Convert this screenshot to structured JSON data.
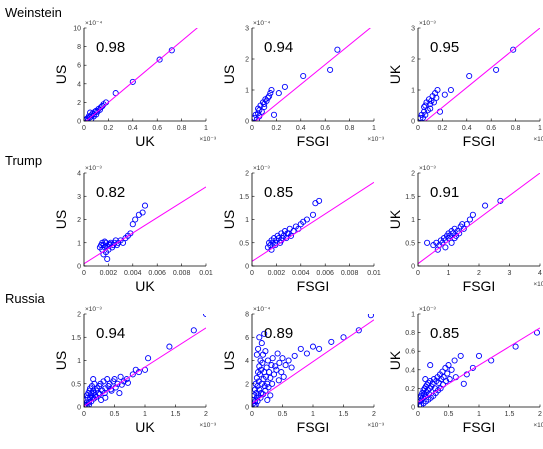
{
  "colors": {
    "marker": "#0000ff",
    "fit_line": "#ff00ff",
    "axes": "#000000"
  },
  "rows": [
    {
      "label": "Weinstein"
    },
    {
      "label": "Trump"
    },
    {
      "label": "Russia"
    }
  ],
  "chart_data": [
    {
      "type": "scatter",
      "row": 0,
      "col": 0,
      "corr": "0.98",
      "xlabel": "UK",
      "ylabel": "US",
      "xlim": [
        0,
        1
      ],
      "ylim": [
        0,
        10
      ],
      "xticks": [
        "0",
        "0.2",
        "0.4",
        "0.6",
        "0.8",
        "1"
      ],
      "yticks": [
        "0",
        "2",
        "4",
        "6",
        "8",
        "10"
      ],
      "xmult": "×10⁻³",
      "ymult": "×10⁻⁴",
      "fit": [
        [
          0,
          -0.2
        ],
        [
          1,
          10.8
        ]
      ],
      "x": [
        0.01,
        0.02,
        0.03,
        0.04,
        0.05,
        0.06,
        0.07,
        0.08,
        0.09,
        0.1,
        0.11,
        0.12,
        0.13,
        0.14,
        0.15,
        0.16,
        0.05,
        0.08,
        0.18,
        0.26,
        0.4,
        0.62,
        0.72,
        0.03,
        0.06,
        0.1
      ],
      "y": [
        0.1,
        0.2,
        0.3,
        0.5,
        0.4,
        0.6,
        0.8,
        0.7,
        1.0,
        1.1,
        1.0,
        1.3,
        1.2,
        1.5,
        1.6,
        1.8,
        0.9,
        0.5,
        2.0,
        3.0,
        4.2,
        6.6,
        7.6,
        0.0,
        0.2,
        0.7
      ]
    },
    {
      "type": "scatter",
      "row": 0,
      "col": 1,
      "corr": "0.94",
      "xlabel": "FSGI",
      "ylabel": "US",
      "xlim": [
        0,
        1
      ],
      "ylim": [
        0,
        3
      ],
      "xticks": [
        "0",
        "0.2",
        "0.4",
        "0.6",
        "0.8",
        "1"
      ],
      "yticks": [
        "0",
        "1",
        "2",
        "3"
      ],
      "xmult": "×10⁻³",
      "ymult": "×10⁻⁴",
      "fit": [
        [
          0,
          -0.1
        ],
        [
          1,
          3.1
        ]
      ],
      "x": [
        0.02,
        0.03,
        0.05,
        0.05,
        0.06,
        0.07,
        0.08,
        0.09,
        0.1,
        0.11,
        0.12,
        0.13,
        0.14,
        0.15,
        0.18,
        0.22,
        0.27,
        0.42,
        0.64,
        0.7,
        0.06,
        0.1,
        0.04,
        0.16
      ],
      "y": [
        0.1,
        0.2,
        0.25,
        0.4,
        0.35,
        0.5,
        0.3,
        0.6,
        0.55,
        0.7,
        0.65,
        0.75,
        0.8,
        0.9,
        0.2,
        0.9,
        1.1,
        1.45,
        1.65,
        2.3,
        0.15,
        0.45,
        0.05,
        1.0
      ]
    },
    {
      "type": "scatter",
      "row": 0,
      "col": 2,
      "corr": "0.95",
      "xlabel": "FSGI",
      "ylabel": "UK",
      "xlim": [
        0,
        1
      ],
      "ylim": [
        0,
        3
      ],
      "xticks": [
        "0",
        "0.2",
        "0.4",
        "0.6",
        "0.8",
        "1"
      ],
      "yticks": [
        "0",
        "1",
        "2",
        "3"
      ],
      "xmult": "×10⁻³",
      "ymult": "×10⁻³",
      "fit": [
        [
          0,
          -0.2
        ],
        [
          1,
          3.0
        ]
      ],
      "x": [
        0.02,
        0.03,
        0.05,
        0.05,
        0.06,
        0.07,
        0.08,
        0.09,
        0.1,
        0.11,
        0.12,
        0.13,
        0.14,
        0.15,
        0.18,
        0.22,
        0.27,
        0.42,
        0.64,
        0.78,
        0.06,
        0.1,
        0.04,
        0.16
      ],
      "y": [
        0.1,
        0.2,
        0.3,
        0.45,
        0.5,
        0.6,
        0.35,
        0.7,
        0.55,
        0.65,
        0.8,
        0.6,
        0.9,
        0.75,
        0.3,
        0.85,
        1.0,
        1.45,
        1.65,
        2.3,
        0.2,
        0.4,
        0.1,
        1.0
      ]
    },
    {
      "type": "scatter",
      "row": 1,
      "col": 0,
      "corr": "0.82",
      "xlabel": "UK",
      "ylabel": "US",
      "xlim": [
        0,
        0.01
      ],
      "ylim": [
        0,
        4
      ],
      "xticks": [
        "0",
        "0.002",
        "0.004",
        "0.006",
        "0.008",
        "0.01"
      ],
      "yticks": [
        "0",
        "1",
        "2",
        "3",
        "4"
      ],
      "xmult": "",
      "ymult": "×10⁻³",
      "fit": [
        [
          0,
          0.1
        ],
        [
          0.01,
          3.4
        ]
      ],
      "x": [
        0.0013,
        0.0014,
        0.0015,
        0.0015,
        0.0016,
        0.0017,
        0.0018,
        0.0018,
        0.0019,
        0.002,
        0.0021,
        0.0022,
        0.0023,
        0.0024,
        0.0025,
        0.0026,
        0.0027,
        0.0028,
        0.003,
        0.0032,
        0.0034,
        0.0036,
        0.0038,
        0.004,
        0.0042,
        0.0045,
        0.0048,
        0.005,
        0.0016,
        0.0019,
        0.0017,
        0.0021
      ],
      "y": [
        0.8,
        0.9,
        0.7,
        1.0,
        0.9,
        0.8,
        1.0,
        0.6,
        0.3,
        0.7,
        0.9,
        1.0,
        0.8,
        0.9,
        1.0,
        1.1,
        0.9,
        1.0,
        1.1,
        1.0,
        1.2,
        1.3,
        1.4,
        1.8,
        2.0,
        2.2,
        2.3,
        2.6,
        0.5,
        0.85,
        1.05,
        0.95
      ]
    },
    {
      "type": "scatter",
      "row": 1,
      "col": 1,
      "corr": "0.85",
      "xlabel": "FSGI",
      "ylabel": "US",
      "xlim": [
        0,
        0.01
      ],
      "ylim": [
        0,
        2
      ],
      "xticks": [
        "0",
        "0.002",
        "0.004",
        "0.006",
        "0.008",
        "0.01"
      ],
      "yticks": [
        "0",
        "0.5",
        "1",
        "1.5",
        "2"
      ],
      "xmult": "",
      "ymult": "×10⁻³",
      "fit": [
        [
          0,
          0.1
        ],
        [
          0.01,
          1.8
        ]
      ],
      "x": [
        0.0013,
        0.0014,
        0.0015,
        0.0016,
        0.0017,
        0.0018,
        0.0019,
        0.002,
        0.0021,
        0.0022,
        0.0023,
        0.0024,
        0.0025,
        0.0026,
        0.0027,
        0.0028,
        0.003,
        0.0031,
        0.0032,
        0.0034,
        0.0036,
        0.0038,
        0.004,
        0.0042,
        0.0045,
        0.005,
        0.0052,
        0.0055,
        0.0016,
        0.0019,
        0.0024,
        0.0029
      ],
      "y": [
        0.4,
        0.5,
        0.45,
        0.55,
        0.5,
        0.6,
        0.5,
        0.55,
        0.65,
        0.6,
        0.5,
        0.7,
        0.6,
        0.65,
        0.75,
        0.6,
        0.7,
        0.8,
        0.65,
        0.75,
        0.85,
        0.8,
        0.9,
        0.95,
        1.0,
        1.1,
        1.35,
        1.4,
        0.35,
        0.45,
        0.55,
        0.7
      ]
    },
    {
      "type": "scatter",
      "row": 1,
      "col": 2,
      "corr": "0.91",
      "xlabel": "FSGI",
      "ylabel": "UK",
      "xlim": [
        0,
        4
      ],
      "ylim": [
        0,
        2
      ],
      "xticks": [
        "0",
        "1",
        "2",
        "3",
        "4"
      ],
      "yticks": [
        "0",
        "0.5",
        "1",
        "1.5",
        "2"
      ],
      "xmult": "×10⁻³",
      "ymult": "×10⁻³",
      "fit": [
        [
          0,
          0.05
        ],
        [
          4,
          2.0
        ]
      ],
      "x": [
        0.3,
        0.5,
        0.6,
        0.7,
        0.75,
        0.8,
        0.85,
        0.9,
        0.95,
        1.0,
        1.0,
        1.05,
        1.1,
        1.1,
        1.15,
        1.2,
        1.25,
        1.3,
        1.35,
        1.4,
        1.5,
        1.6,
        1.7,
        1.8,
        2.2,
        2.7,
        0.65,
        0.9,
        1.2,
        1.45
      ],
      "y": [
        0.5,
        0.45,
        0.5,
        0.45,
        0.55,
        0.5,
        0.6,
        0.55,
        0.65,
        0.6,
        0.7,
        0.65,
        0.75,
        0.5,
        0.7,
        0.8,
        0.65,
        0.75,
        0.7,
        0.85,
        0.8,
        0.9,
        1.0,
        1.1,
        1.3,
        1.4,
        0.35,
        0.4,
        0.6,
        0.9
      ]
    },
    {
      "type": "scatter",
      "row": 2,
      "col": 0,
      "corr": "0.94",
      "xlabel": "UK",
      "ylabel": "US",
      "xlim": [
        0,
        2
      ],
      "ylim": [
        0,
        2
      ],
      "xticks": [
        "0",
        "0.5",
        "1",
        "1.5",
        "2"
      ],
      "yticks": [
        "0",
        "0.5",
        "1",
        "1.5",
        "2"
      ],
      "xmult": "×10⁻³",
      "ymult": "×10⁻³",
      "fit": [
        [
          0,
          0.02
        ],
        [
          2,
          1.7
        ]
      ],
      "x": [
        0.02,
        0.03,
        0.05,
        0.05,
        0.06,
        0.07,
        0.08,
        0.09,
        0.1,
        0.1,
        0.11,
        0.12,
        0.13,
        0.14,
        0.15,
        0.16,
        0.17,
        0.18,
        0.2,
        0.22,
        0.24,
        0.25,
        0.27,
        0.3,
        0.32,
        0.35,
        0.38,
        0.4,
        0.42,
        0.45,
        0.48,
        0.5,
        0.55,
        0.6,
        0.65,
        0.7,
        0.8,
        0.9,
        1.0,
        1.05,
        1.4,
        1.8,
        2.0,
        0.04,
        0.08,
        0.12,
        0.16,
        0.2,
        0.26,
        0.34,
        0.44,
        0.52,
        0.62,
        0.72,
        0.85,
        0.35,
        0.58,
        0.15,
        0.05,
        0.28
      ],
      "y": [
        0.05,
        0.15,
        0.1,
        0.25,
        0.2,
        0.3,
        0.1,
        0.35,
        0.2,
        0.4,
        0.25,
        0.3,
        0.45,
        0.2,
        0.35,
        0.3,
        0.5,
        0.25,
        0.35,
        0.4,
        0.3,
        0.45,
        0.5,
        0.35,
        0.55,
        0.4,
        0.6,
        0.45,
        0.5,
        0.35,
        0.55,
        0.6,
        0.5,
        0.65,
        0.55,
        0.6,
        0.7,
        0.75,
        0.8,
        1.05,
        1.3,
        1.65,
        2.0,
        0.02,
        0.05,
        0.12,
        0.18,
        0.22,
        0.28,
        0.3,
        0.38,
        0.42,
        0.48,
        0.52,
        0.8,
        0.2,
        0.3,
        0.6,
        0.0,
        0.15
      ]
    },
    {
      "type": "scatter",
      "row": 2,
      "col": 1,
      "corr": "0.89",
      "xlabel": "FSGI",
      "ylabel": "US",
      "xlim": [
        0,
        2
      ],
      "ylim": [
        0,
        8
      ],
      "xticks": [
        "0",
        "0.5",
        "1",
        "1.5",
        "2"
      ],
      "yticks": [
        "0",
        "2",
        "4",
        "6",
        "8"
      ],
      "xmult": "×10⁻³",
      "ymult": "×10⁻⁴",
      "fit": [
        [
          0,
          0.3
        ],
        [
          2,
          7.5
        ]
      ],
      "x": [
        0.02,
        0.03,
        0.04,
        0.05,
        0.05,
        0.06,
        0.07,
        0.08,
        0.08,
        0.09,
        0.1,
        0.1,
        0.11,
        0.12,
        0.12,
        0.13,
        0.14,
        0.15,
        0.15,
        0.16,
        0.17,
        0.18,
        0.19,
        0.2,
        0.21,
        0.22,
        0.23,
        0.24,
        0.25,
        0.26,
        0.28,
        0.3,
        0.32,
        0.34,
        0.36,
        0.38,
        0.4,
        0.42,
        0.45,
        0.48,
        0.5,
        0.55,
        0.6,
        0.65,
        0.7,
        0.8,
        0.9,
        1.0,
        1.1,
        1.3,
        1.5,
        1.75,
        1.95,
        0.06,
        0.09,
        0.14,
        0.18,
        0.22,
        0.27,
        0.33,
        0.44,
        0.52,
        0.1,
        0.16,
        0.12,
        0.2,
        0.08,
        0.3,
        0.04,
        0.25
      ],
      "y": [
        0.3,
        0.6,
        1.0,
        1.5,
        0.5,
        2.0,
        1.2,
        2.5,
        0.8,
        1.8,
        3.0,
        1.0,
        2.2,
        3.5,
        1.5,
        2.8,
        4.0,
        1.2,
        3.2,
        2.0,
        3.8,
        4.5,
        2.4,
        3.0,
        1.8,
        4.8,
        2.6,
        3.4,
        2.0,
        4.0,
        3.0,
        2.5,
        3.6,
        4.2,
        2.8,
        3.5,
        3.2,
        4.6,
        3.8,
        3.0,
        4.2,
        3.6,
        4.0,
        3.4,
        4.4,
        5.0,
        4.6,
        5.2,
        5.0,
        5.6,
        6.0,
        6.6,
        7.9,
        0.2,
        0.5,
        0.8,
        1.1,
        1.4,
        1.7,
        2.0,
        2.3,
        2.6,
        5.0,
        5.5,
        6.0,
        6.3,
        4.5,
        1.0,
        0.1,
        0.6
      ]
    },
    {
      "type": "scatter",
      "row": 2,
      "col": 2,
      "corr": "0.85",
      "xlabel": "FSGI",
      "ylabel": "UK",
      "xlim": [
        0,
        2
      ],
      "ylim": [
        0,
        1
      ],
      "xticks": [
        "0",
        "0.5",
        "1",
        "1.5",
        "2"
      ],
      "yticks": [
        "0",
        "0.2",
        "0.4",
        "0.6",
        "0.8",
        "1"
      ],
      "xmult": "×10⁻³",
      "ymult": "×10⁻³",
      "fit": [
        [
          0,
          0.05
        ],
        [
          2,
          0.85
        ]
      ],
      "x": [
        0.02,
        0.03,
        0.04,
        0.05,
        0.06,
        0.07,
        0.08,
        0.09,
        0.1,
        0.11,
        0.12,
        0.13,
        0.14,
        0.15,
        0.16,
        0.17,
        0.18,
        0.19,
        0.2,
        0.22,
        0.24,
        0.26,
        0.28,
        0.3,
        0.32,
        0.34,
        0.36,
        0.38,
        0.4,
        0.42,
        0.45,
        0.48,
        0.5,
        0.55,
        0.6,
        0.7,
        0.8,
        0.9,
        1.0,
        1.2,
        1.6,
        1.95,
        0.05,
        0.09,
        0.13,
        0.17,
        0.21,
        0.25,
        0.29,
        0.33,
        0.37,
        0.41,
        0.46,
        0.52,
        0.62,
        0.75,
        0.12,
        0.2
      ],
      "y": [
        0.02,
        0.06,
        0.1,
        0.12,
        0.08,
        0.15,
        0.1,
        0.18,
        0.14,
        0.2,
        0.12,
        0.22,
        0.16,
        0.24,
        0.18,
        0.26,
        0.14,
        0.2,
        0.28,
        0.22,
        0.25,
        0.3,
        0.2,
        0.28,
        0.32,
        0.26,
        0.35,
        0.3,
        0.38,
        0.32,
        0.42,
        0.36,
        0.45,
        0.4,
        0.5,
        0.55,
        0.35,
        0.42,
        0.55,
        0.5,
        0.65,
        0.8,
        0.02,
        0.04,
        0.06,
        0.08,
        0.1,
        0.12,
        0.15,
        0.18,
        0.2,
        0.24,
        0.28,
        0.3,
        0.32,
        0.25,
        0.3,
        0.45
      ]
    }
  ]
}
